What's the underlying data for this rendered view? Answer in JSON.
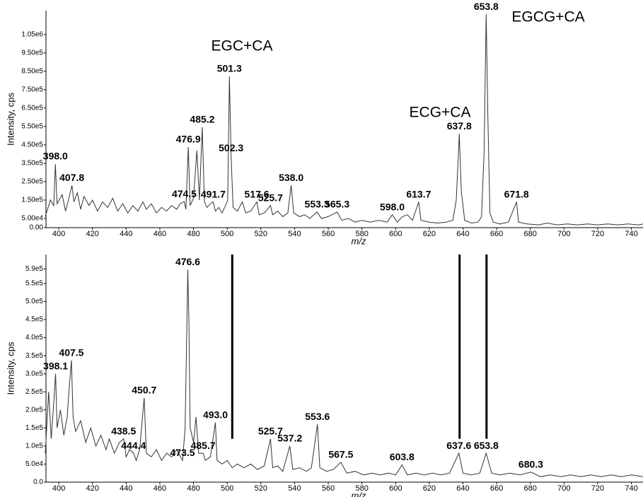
{
  "chart_data": [
    {
      "type": "line",
      "y_label": "Intensity, cps",
      "x_label": "m/z",
      "grid": false,
      "xlim": [
        392.4,
        746.9
      ],
      "xticks": [
        400,
        420,
        440,
        460,
        480,
        500,
        520,
        540,
        560,
        580,
        600,
        620,
        640,
        660,
        680,
        700,
        720,
        740
      ],
      "ylim": [
        0,
        1180000
      ],
      "yticks": [
        {
          "value": 0,
          "label": "0.00"
        },
        {
          "value": 50000,
          "label": "5.00e4"
        },
        {
          "value": 150000,
          "label": "1.50e5"
        },
        {
          "value": 250000,
          "label": "2.50e5"
        },
        {
          "value": 350000,
          "label": "3.50e5"
        },
        {
          "value": 450000,
          "label": "4.50e5"
        },
        {
          "value": 550000,
          "label": "5.50e5"
        },
        {
          "value": 650000,
          "label": "6.50e5"
        },
        {
          "value": 750000,
          "label": "7.50e5"
        },
        {
          "value": 850000,
          "label": "8.50e5"
        },
        {
          "value": 950000,
          "label": "9.50e5"
        },
        {
          "value": 1050000,
          "label": "1.05e6"
        }
      ],
      "series": [
        {
          "color": "#333333",
          "x": [
            392,
            395,
            397,
            398,
            399,
            402,
            404,
            406,
            407.8,
            409,
            411,
            413,
            415,
            418,
            420,
            423,
            426,
            429,
            432,
            435,
            438,
            441,
            444,
            447,
            450,
            452,
            455,
            458,
            461,
            464,
            467,
            470,
            472,
            474.5,
            475.5,
            476.9,
            478,
            480,
            482,
            483.5,
            485.2,
            486.5,
            488,
            490,
            491.7,
            493,
            495,
            497,
            499,
            500.3,
            501.3,
            502.3,
            503.5,
            506,
            509,
            511,
            514,
            517.6,
            519,
            522,
            525.7,
            527,
            530,
            533,
            536,
            538,
            539.5,
            543,
            546,
            549,
            553.3,
            556,
            560,
            565.3,
            568,
            572,
            576,
            580,
            585,
            590,
            595,
            598,
            601,
            604,
            607,
            610,
            613.7,
            615,
            620,
            625,
            630,
            634,
            636,
            637.8,
            639,
            641,
            645,
            649,
            651,
            652.5,
            653.8,
            654.8,
            656,
            658,
            662,
            667,
            671.8,
            673,
            678,
            685,
            690,
            696,
            702,
            708,
            714,
            720,
            726,
            732,
            738,
            744,
            747
          ],
          "values": [
            60000,
            150000,
            120000,
            346000,
            130000,
            180000,
            90000,
            160000,
            230000,
            140000,
            190000,
            100000,
            170000,
            120000,
            150000,
            90000,
            140000,
            110000,
            160000,
            90000,
            130000,
            80000,
            120000,
            90000,
            140000,
            100000,
            130000,
            80000,
            110000,
            90000,
            120000,
            100000,
            130000,
            142000,
            100000,
            438000,
            120000,
            160000,
            420000,
            150000,
            546000,
            140000,
            110000,
            130000,
            140000,
            90000,
            110000,
            80000,
            120000,
            150000,
            823000,
            390000,
            110000,
            90000,
            140000,
            80000,
            90000,
            140000,
            70000,
            80000,
            120000,
            70000,
            90000,
            60000,
            80000,
            230000,
            80000,
            60000,
            70000,
            50000,
            85000,
            50000,
            60000,
            85000,
            40000,
            50000,
            30000,
            40000,
            30000,
            40000,
            30000,
            70000,
            30000,
            60000,
            70000,
            40000,
            140000,
            40000,
            30000,
            25000,
            30000,
            40000,
            150000,
            510000,
            200000,
            40000,
            25000,
            30000,
            60000,
            400000,
            1160000,
            600000,
            80000,
            30000,
            20000,
            30000,
            140000,
            30000,
            20000,
            15000,
            25000,
            15000,
            20000,
            15000,
            20000,
            15000,
            20000,
            15000,
            20000,
            15000,
            20000
          ]
        }
      ],
      "peaks": {
        "x": [
          398.0,
          407.8,
          474.5,
          476.9,
          485.2,
          491.7,
          501.3,
          502.3,
          517.6,
          525.7,
          538.0,
          553.3,
          565.3,
          598.0,
          613.7,
          637.8,
          653.8,
          671.8
        ],
        "values": [
          346000,
          230000,
          142000,
          438000,
          546000,
          140000,
          823000,
          390000,
          140000,
          120000,
          230000,
          85000,
          85000,
          70000,
          140000,
          510000,
          1160000,
          140000
        ],
        "x_labels": [
          "398.0",
          "407.8",
          "474.5",
          "476.9",
          "485.2",
          "491.7",
          "501.3",
          "502.3",
          "517.6",
          "525.7",
          "538.0",
          "553.3",
          "565.3",
          "598.0",
          "613.7",
          "637.8",
          "653.8",
          "671.8"
        ]
      },
      "annotations": [
        "EGC+CA",
        "ECG+CA",
        "EGCG+CA"
      ]
    },
    {
      "type": "line",
      "y_label": "Intensity, cps",
      "x_label": "m/z",
      "grid": false,
      "xlim": [
        392.4,
        746.9
      ],
      "xticks": [
        400,
        420,
        440,
        460,
        480,
        500,
        520,
        540,
        560,
        580,
        600,
        620,
        640,
        660,
        680,
        700,
        720,
        740
      ],
      "ylim": [
        0,
        630000
      ],
      "yticks": [
        {
          "value": 0,
          "label": "0.0"
        },
        {
          "value": 50000,
          "label": "5.0e4"
        },
        {
          "value": 100000,
          "label": "1.0e5"
        },
        {
          "value": 150000,
          "label": "1.5e5"
        },
        {
          "value": 200000,
          "label": "2.0e5"
        },
        {
          "value": 250000,
          "label": "2.5e5"
        },
        {
          "value": 300000,
          "label": "3.0e5"
        },
        {
          "value": 350000,
          "label": "3.5e5"
        },
        {
          "value": 400000,
          "label": "4.0e5"
        },
        {
          "value": 450000,
          "label": "4.5e5"
        },
        {
          "value": 500000,
          "label": "5.0e5"
        },
        {
          "value": 550000,
          "label": "5.5e5"
        },
        {
          "value": 590000,
          "label": "5.9e5"
        }
      ],
      "series": [
        {
          "color": "#333333",
          "x": [
            392,
            394,
            395.5,
            397,
            398.1,
            399,
            401,
            403,
            405,
            406,
            407.5,
            408.5,
            410,
            413,
            416,
            419,
            422,
            425,
            428,
            430,
            433,
            436,
            438.5,
            440,
            442,
            444.4,
            446,
            448,
            450.7,
            452,
            455,
            458,
            461,
            464,
            467,
            470,
            473.5,
            475,
            476.6,
            477.3,
            478,
            480,
            481.5,
            483,
            485.7,
            487,
            490,
            493,
            494,
            497,
            500,
            503,
            506,
            510,
            514,
            518,
            522,
            525.7,
            527,
            530,
            533,
            537.2,
            539,
            543,
            547,
            550,
            553.6,
            555,
            559,
            563,
            567.5,
            571,
            576,
            581,
            586,
            591,
            596,
            600,
            603.8,
            607,
            612,
            617,
            622,
            627,
            632,
            637.6,
            640,
            645,
            650,
            653.8,
            657,
            662,
            668,
            674,
            680.3,
            686,
            692,
            698,
            704,
            710,
            716,
            722,
            728,
            734,
            740,
            747
          ],
          "values": [
            80000,
            250000,
            120000,
            220000,
            300000,
            150000,
            200000,
            130000,
            180000,
            250000,
            337000,
            180000,
            140000,
            170000,
            110000,
            150000,
            100000,
            130000,
            90000,
            120000,
            80000,
            110000,
            120000,
            70000,
            90000,
            80000,
            60000,
            90000,
            233000,
            80000,
            70000,
            90000,
            60000,
            80000,
            70000,
            90000,
            60000,
            150000,
            588000,
            440000,
            150000,
            110000,
            180000,
            80000,
            80000,
            60000,
            70000,
            165000,
            60000,
            50000,
            60000,
            40000,
            50000,
            40000,
            50000,
            35000,
            45000,
            120000,
            40000,
            45000,
            30000,
            100000,
            35000,
            40000,
            30000,
            40000,
            160000,
            40000,
            30000,
            35000,
            55000,
            25000,
            30000,
            20000,
            25000,
            20000,
            25000,
            20000,
            48000,
            20000,
            25000,
            20000,
            25000,
            20000,
            25000,
            80000,
            25000,
            20000,
            25000,
            80000,
            25000,
            20000,
            25000,
            20000,
            28000,
            15000,
            20000,
            15000,
            20000,
            15000,
            20000,
            15000,
            20000,
            15000,
            20000,
            15000
          ]
        }
      ],
      "peaks": {
        "x": [
          398.1,
          407.5,
          438.5,
          444.4,
          450.7,
          473.5,
          476.6,
          485.7,
          493.0,
          525.7,
          537.2,
          553.6,
          567.5,
          603.8,
          637.6,
          653.8,
          680.3
        ],
        "values": [
          300000,
          337000,
          120000,
          80000,
          233000,
          60000,
          588000,
          80000,
          165000,
          120000,
          100000,
          160000,
          55000,
          48000,
          80000,
          80000,
          28000
        ],
        "x_labels": [
          "398.1",
          "407.5",
          "438.5",
          "444.4",
          "450.7",
          "473.5",
          "476.6",
          "485.7",
          "493.0",
          "525.7",
          "537.2",
          "553.6",
          "567.5",
          "603.8",
          "637.6",
          "653.8",
          "680.3"
        ]
      },
      "marker_lines": {
        "x": [
          503,
          638,
          654
        ],
        "ymin": 120000
      }
    }
  ]
}
